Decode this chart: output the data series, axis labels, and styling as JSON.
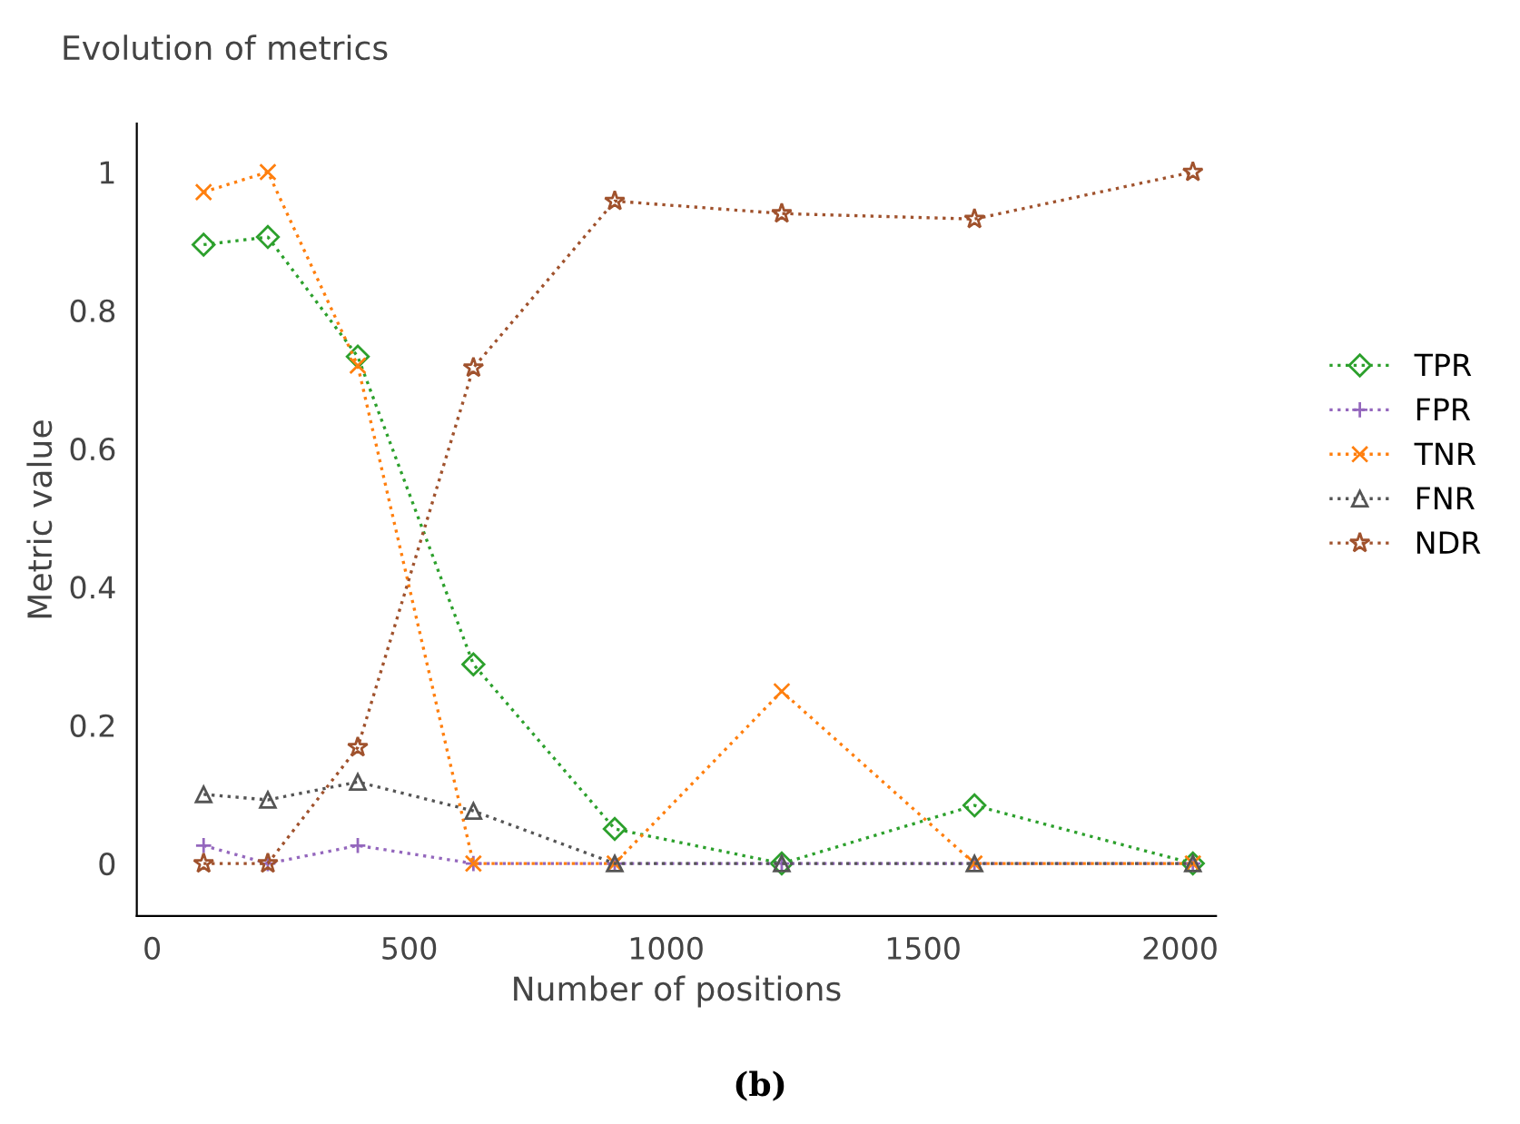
{
  "chart_data": {
    "type": "line",
    "title": "Evolution of metrics",
    "xlabel": "Number of positions",
    "ylabel": "Metric value",
    "x": [
      100,
      225,
      400,
      625,
      900,
      1225,
      1600,
      2025
    ],
    "series": [
      {
        "name": "TPR",
        "color": "#2ca02c",
        "marker": "diamond",
        "values": [
          0.895,
          0.906,
          0.733,
          0.288,
          0.05,
          0,
          0.084,
          0
        ]
      },
      {
        "name": "FPR",
        "color": "#9467bd",
        "marker": "plus",
        "values": [
          0.026,
          0,
          0.026,
          0,
          0,
          0,
          0,
          0
        ]
      },
      {
        "name": "TNR",
        "color": "#ff7f0e",
        "marker": "x",
        "values": [
          0.971,
          1.0,
          0.72,
          0,
          0,
          0.249,
          0,
          0
        ]
      },
      {
        "name": "FNR",
        "color": "#555555",
        "marker": "triangle",
        "values": [
          0.1,
          0.092,
          0.118,
          0.076,
          0,
          0,
          0,
          0
        ]
      },
      {
        "name": "NDR",
        "color": "#a0522d",
        "marker": "star",
        "values": [
          0,
          0,
          0.168,
          0.717,
          0.958,
          0.94,
          0.932,
          1.0
        ]
      }
    ],
    "line_style": "dotted",
    "grid": false,
    "legend": "right",
    "xlim": [
      -30,
      2070
    ],
    "xticks": [
      0,
      500,
      1000,
      1500,
      2000
    ],
    "ylim": [
      -0.076,
      1.07
    ],
    "yticks": [
      0,
      0.2,
      0.4,
      0.6,
      0.8,
      1
    ],
    "annotations": [
      "(b)"
    ]
  }
}
